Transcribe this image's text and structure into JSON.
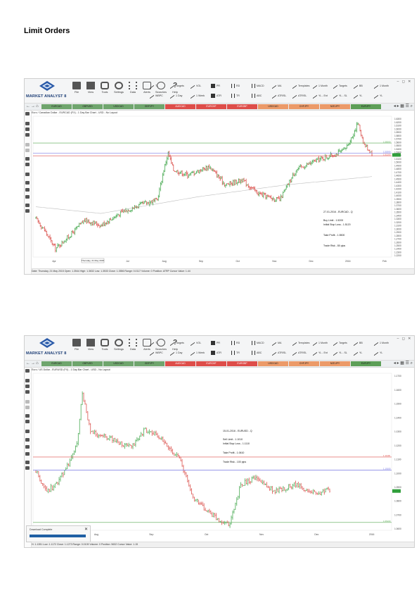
{
  "page_title": "Limit Orders",
  "app": {
    "name": "MARKET ANALYST 8",
    "toolbar": [
      "File",
      "View",
      "Tools",
      "Settings",
      "Data",
      "Alerts",
      "Searches",
      "Help"
    ],
    "window_buttons": "– ◻ ✕",
    "drawing_row1": [
      "TL",
      "Targets",
      "VOL",
      "PR",
      "RD",
      "MACD",
      "MA",
      "Templates",
      "1 Month",
      "Targets",
      "BB",
      "1 Month"
    ],
    "drawing_row2": [
      "WBPC",
      "1 Day",
      "1 Week",
      "ATR",
      "TR",
      "ABC",
      "ATR/SL",
      "ATR/SL",
      "YL - Ent",
      "YL - SL",
      "YL",
      "YL"
    ],
    "tabs": [
      "EURCAD",
      "GBPUSD",
      "USDCAD",
      "GBPJPY",
      "AUDCAD",
      "EURCHF",
      "EURGBP",
      "USDCAD",
      "CHFJPY",
      "NZDJPY",
      "EURJPY"
    ]
  },
  "screens": [
    {
      "chart_info": "Euro / Canadian Dollar - EURCAD (FX) - 1 Day Bar Chart - USD - No Layout",
      "status": "Date: Thursday, 21 May 2015 Open: 1.3544 High: 1.3632 Low: 1.3533 Close: 1.3556 Range: 0.0117 Volume: 0 Position: ATRP Cursor Value: 1.44",
      "cursor_date": "Thursday, 21 May 2015",
      "notes": [
        "27-01-2016 - EURCAD - Q",
        "Buy Limit   -   1.5200",
        "Initial Stop Loss - 1.5120",
        "Take Profit   -   1.5500",
        "Trade Risk   -   80 pips"
      ],
      "price_tags": [
        "1.55000",
        "1.52000",
        "1.51200"
      ],
      "chart_data": {
        "type": "bar",
        "xlabel": "",
        "ylabel": "",
        "ylim": [
          1.21,
          1.63
        ],
        "x_tick_labels": [
          "Apr",
          "Jun",
          "Jul",
          "Aug",
          "Sep",
          "Oct",
          "Nov",
          "Dec",
          "2016",
          "Feb"
        ],
        "y_tick_labels": [
          "1.6300",
          "1.6200",
          "1.6100",
          "1.6000",
          "1.5900",
          "1.5800",
          "1.5700",
          "1.5600",
          "1.5500",
          "1.5400",
          "1.5300",
          "1.5200",
          "1.5100",
          "1.5000",
          "1.4900",
          "1.4800",
          "1.4700",
          "1.4600",
          "1.4500",
          "1.4400",
          "1.4300",
          "1.4200",
          "1.4100",
          "1.4000",
          "1.3900",
          "1.3800",
          "1.3700",
          "1.3600",
          "1.3500",
          "1.3400",
          "1.3300",
          "1.3200",
          "1.3100",
          "1.3000",
          "1.2900",
          "1.2800",
          "1.2700",
          "1.2600",
          "1.2500",
          "1.2400",
          "1.2300",
          "1.2200"
        ],
        "levels": [
          {
            "name": "Take Profit",
            "value": 1.55,
            "color": "#55a84f"
          },
          {
            "name": "Buy Limit",
            "value": 1.52,
            "color": "#5b5bdc"
          },
          {
            "name": "Initial Stop Loss",
            "value": 1.512,
            "color": "#de4d49"
          }
        ],
        "path_anchors": [
          [
            0,
            1.325
          ],
          [
            8,
            1.29
          ],
          [
            18,
            1.235
          ],
          [
            30,
            1.27
          ],
          [
            45,
            1.32
          ],
          [
            60,
            1.305
          ],
          [
            80,
            1.345
          ],
          [
            100,
            1.37
          ],
          [
            112,
            1.38
          ],
          [
            118,
            1.47
          ],
          [
            122,
            1.52
          ],
          [
            127,
            1.47
          ],
          [
            140,
            1.455
          ],
          [
            160,
            1.48
          ],
          [
            175,
            1.425
          ],
          [
            190,
            1.44
          ],
          [
            205,
            1.4
          ],
          [
            218,
            1.385
          ],
          [
            225,
            1.38
          ],
          [
            240,
            1.47
          ],
          [
            260,
            1.5
          ],
          [
            275,
            1.515
          ],
          [
            285,
            1.53
          ],
          [
            292,
            1.57
          ],
          [
            297,
            1.61
          ],
          [
            303,
            1.545
          ],
          [
            310,
            1.52
          ]
        ],
        "moving_average_anchors": [
          [
            0,
            1.36
          ],
          [
            60,
            1.34
          ],
          [
            150,
            1.39
          ],
          [
            230,
            1.425
          ],
          [
            310,
            1.45
          ]
        ]
      }
    },
    {
      "chart_info": "Euro / US Dollar - EURUSD (FX) - 1 Day Bar Chart - USD - No Layout",
      "status": "H: 1.1281 Low: 1.1172 Close: 1.1273 Range: 0.0109 Volume: 0 Position: 5632 Cursor Value: 1.15",
      "download": "Download Complete",
      "notes": [
        "15-01-2016 - EURUSD - Q",
        "Sell Limit   -   1.1010",
        "Initial Stop Loss - 1.1110",
        "Take Profit   -   1.0610",
        "Trade Risk   -   100 pips"
      ],
      "price_tags": [
        "1.11100",
        "1.10100",
        "1.06100"
      ],
      "chart_data": {
        "type": "bar",
        "xlabel": "",
        "ylabel": "",
        "ylim": [
          1.055,
          1.175
        ],
        "x_tick_labels": [
          "Aug",
          "Sep",
          "Oct",
          "Nov",
          "Dec",
          "2016",
          "Feb"
        ],
        "y_tick_labels": [
          "1.1700",
          "1.1600",
          "1.1500",
          "1.1400",
          "1.1300",
          "1.1200",
          "1.1100",
          "1.1000",
          "1.0900",
          "1.0800",
          "1.0700",
          "1.0600"
        ],
        "levels": [
          {
            "name": "Initial Stop Loss",
            "value": 1.111,
            "color": "#de4d49"
          },
          {
            "name": "Sell Limit",
            "value": 1.101,
            "color": "#5b5bdc"
          },
          {
            "name": "Take Profit",
            "value": 1.061,
            "color": "#55a84f"
          }
        ],
        "path_anchors": [
          [
            0,
            1.1
          ],
          [
            8,
            1.085
          ],
          [
            15,
            1.09
          ],
          [
            22,
            1.102
          ],
          [
            30,
            1.12
          ],
          [
            34,
            1.16
          ],
          [
            40,
            1.13
          ],
          [
            55,
            1.125
          ],
          [
            70,
            1.118
          ],
          [
            80,
            1.132
          ],
          [
            90,
            1.126
          ],
          [
            95,
            1.12
          ],
          [
            105,
            1.11
          ],
          [
            115,
            1.08
          ],
          [
            125,
            1.07
          ],
          [
            135,
            1.062
          ],
          [
            142,
            1.06
          ],
          [
            150,
            1.09
          ],
          [
            160,
            1.095
          ],
          [
            175,
            1.085
          ],
          [
            190,
            1.09
          ],
          [
            205,
            1.083
          ],
          [
            215,
            1.086
          ]
        ],
        "moving_average_anchors": []
      }
    }
  ]
}
